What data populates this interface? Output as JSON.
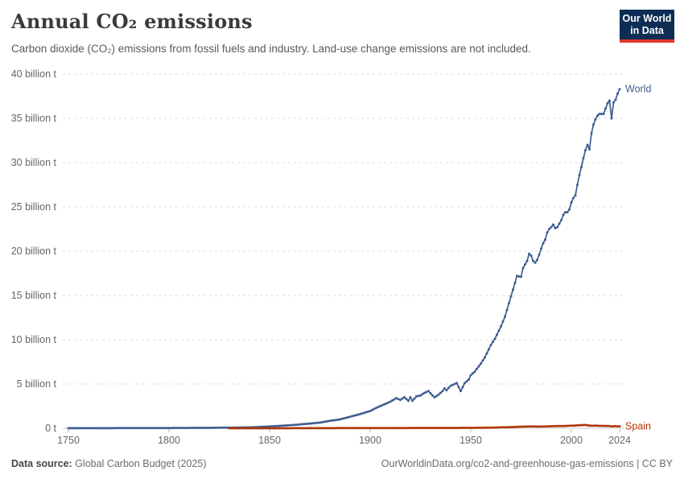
{
  "header": {
    "title": "Annual CO₂ emissions",
    "subtitle": "Carbon dioxide (CO₂) emissions from fossil fuels and industry. Land-use change emissions are not included.",
    "logo": {
      "line1": "Our World",
      "line2": "in Data"
    }
  },
  "footer": {
    "source_label": "Data source:",
    "source_value": " Global Carbon Budget (2025)",
    "credit": "OurWorldinData.org/co2-and-greenhouse-gas-emissions | CC BY"
  },
  "colors": {
    "world": "#3d5c8f",
    "spain": "#b13507",
    "logo_bg": "#0d2d54",
    "logo_accent": "#e0382d",
    "gridline": "#dcdcdc",
    "axis_text": "#666666"
  },
  "chart_data": {
    "type": "line",
    "title": "Annual CO₂ emissions",
    "unit": "tonnes of CO₂ per year",
    "xlim": [
      1748,
      2026
    ],
    "ylim_billion_t": [
      0,
      40
    ],
    "grid": "horizontal-dashed",
    "legend": "line-end-labels",
    "x_ticks": [
      1750,
      1800,
      1850,
      1900,
      1950,
      2000,
      2024
    ],
    "y_ticks": [
      {
        "value_billion_t": 0,
        "label": "0 t"
      },
      {
        "value_billion_t": 5,
        "label": "5 billion t"
      },
      {
        "value_billion_t": 10,
        "label": "10 billion t"
      },
      {
        "value_billion_t": 15,
        "label": "15 billion t"
      },
      {
        "value_billion_t": 20,
        "label": "20 billion t"
      },
      {
        "value_billion_t": 25,
        "label": "25 billion t"
      },
      {
        "value_billion_t": 30,
        "label": "30 billion t"
      },
      {
        "value_billion_t": 35,
        "label": "35 billion t"
      },
      {
        "value_billion_t": 40,
        "label": "40 billion t"
      }
    ],
    "series": [
      {
        "name": "World",
        "color": "#3d5c8f",
        "points_year_billion_t": [
          [
            1750,
            0.01
          ],
          [
            1760,
            0.011
          ],
          [
            1770,
            0.013
          ],
          [
            1780,
            0.016
          ],
          [
            1790,
            0.021
          ],
          [
            1800,
            0.03
          ],
          [
            1810,
            0.04
          ],
          [
            1820,
            0.05
          ],
          [
            1830,
            0.07
          ],
          [
            1840,
            0.1
          ],
          [
            1850,
            0.2
          ],
          [
            1855,
            0.27
          ],
          [
            1860,
            0.34
          ],
          [
            1865,
            0.43
          ],
          [
            1870,
            0.53
          ],
          [
            1875,
            0.64
          ],
          [
            1880,
            0.84
          ],
          [
            1885,
            1.0
          ],
          [
            1890,
            1.3
          ],
          [
            1895,
            1.6
          ],
          [
            1900,
            1.95
          ],
          [
            1903,
            2.3
          ],
          [
            1905,
            2.5
          ],
          [
            1908,
            2.8
          ],
          [
            1910,
            3.0
          ],
          [
            1913,
            3.4
          ],
          [
            1915,
            3.2
          ],
          [
            1917,
            3.5
          ],
          [
            1919,
            3.1
          ],
          [
            1920,
            3.5
          ],
          [
            1921,
            3.1
          ],
          [
            1923,
            3.6
          ],
          [
            1925,
            3.7
          ],
          [
            1927,
            4.0
          ],
          [
            1929,
            4.2
          ],
          [
            1931,
            3.7
          ],
          [
            1932,
            3.5
          ],
          [
            1934,
            3.8
          ],
          [
            1936,
            4.2
          ],
          [
            1937,
            4.5
          ],
          [
            1938,
            4.3
          ],
          [
            1940,
            4.8
          ],
          [
            1943,
            5.1
          ],
          [
            1945,
            4.2
          ],
          [
            1947,
            5.1
          ],
          [
            1949,
            5.5
          ],
          [
            1950,
            6.0
          ],
          [
            1952,
            6.4
          ],
          [
            1955,
            7.3
          ],
          [
            1957,
            8.0
          ],
          [
            1960,
            9.4
          ],
          [
            1962,
            10.1
          ],
          [
            1965,
            11.5
          ],
          [
            1967,
            12.6
          ],
          [
            1970,
            14.9
          ],
          [
            1973,
            17.2
          ],
          [
            1975,
            17.1
          ],
          [
            1976,
            18.1
          ],
          [
            1978,
            18.9
          ],
          [
            1979,
            19.7
          ],
          [
            1980,
            19.5
          ],
          [
            1981,
            18.9
          ],
          [
            1982,
            18.7
          ],
          [
            1983,
            19.0
          ],
          [
            1984,
            19.6
          ],
          [
            1985,
            20.3
          ],
          [
            1986,
            20.9
          ],
          [
            1987,
            21.3
          ],
          [
            1988,
            22.1
          ],
          [
            1989,
            22.5
          ],
          [
            1990,
            22.7
          ],
          [
            1991,
            23.0
          ],
          [
            1992,
            22.6
          ],
          [
            1993,
            22.7
          ],
          [
            1994,
            23.1
          ],
          [
            1995,
            23.5
          ],
          [
            1996,
            24.1
          ],
          [
            1997,
            24.4
          ],
          [
            1998,
            24.4
          ],
          [
            1999,
            24.7
          ],
          [
            2000,
            25.5
          ],
          [
            2001,
            26.0
          ],
          [
            2002,
            26.3
          ],
          [
            2003,
            27.5
          ],
          [
            2004,
            28.6
          ],
          [
            2005,
            29.5
          ],
          [
            2006,
            30.5
          ],
          [
            2007,
            31.4
          ],
          [
            2008,
            32.0
          ],
          [
            2009,
            31.5
          ],
          [
            2010,
            33.3
          ],
          [
            2011,
            34.3
          ],
          [
            2012,
            34.9
          ],
          [
            2013,
            35.3
          ],
          [
            2014,
            35.5
          ],
          [
            2015,
            35.5
          ],
          [
            2016,
            35.5
          ],
          [
            2017,
            36.1
          ],
          [
            2018,
            36.7
          ],
          [
            2019,
            37.0
          ],
          [
            2020,
            35.0
          ],
          [
            2021,
            36.8
          ],
          [
            2022,
            37.1
          ],
          [
            2023,
            37.8
          ],
          [
            2024,
            38.3
          ]
        ]
      },
      {
        "name": "Spain",
        "color": "#b13507",
        "points_year_billion_t": [
          [
            1830,
            0.0002
          ],
          [
            1840,
            0.0005
          ],
          [
            1850,
            0.0014
          ],
          [
            1860,
            0.004
          ],
          [
            1870,
            0.007
          ],
          [
            1880,
            0.012
          ],
          [
            1890,
            0.018
          ],
          [
            1900,
            0.022
          ],
          [
            1910,
            0.025
          ],
          [
            1920,
            0.032
          ],
          [
            1930,
            0.04
          ],
          [
            1935,
            0.035
          ],
          [
            1940,
            0.037
          ],
          [
            1950,
            0.045
          ],
          [
            1955,
            0.055
          ],
          [
            1960,
            0.065
          ],
          [
            1965,
            0.1
          ],
          [
            1970,
            0.13
          ],
          [
            1975,
            0.18
          ],
          [
            1980,
            0.2
          ],
          [
            1985,
            0.19
          ],
          [
            1990,
            0.23
          ],
          [
            1995,
            0.25
          ],
          [
            2000,
            0.29
          ],
          [
            2002,
            0.31
          ],
          [
            2005,
            0.35
          ],
          [
            2007,
            0.37
          ],
          [
            2008,
            0.33
          ],
          [
            2010,
            0.28
          ],
          [
            2012,
            0.29
          ],
          [
            2015,
            0.27
          ],
          [
            2018,
            0.26
          ],
          [
            2019,
            0.25
          ],
          [
            2020,
            0.21
          ],
          [
            2021,
            0.23
          ],
          [
            2022,
            0.24
          ],
          [
            2023,
            0.22
          ],
          [
            2024,
            0.22
          ]
        ]
      }
    ]
  }
}
